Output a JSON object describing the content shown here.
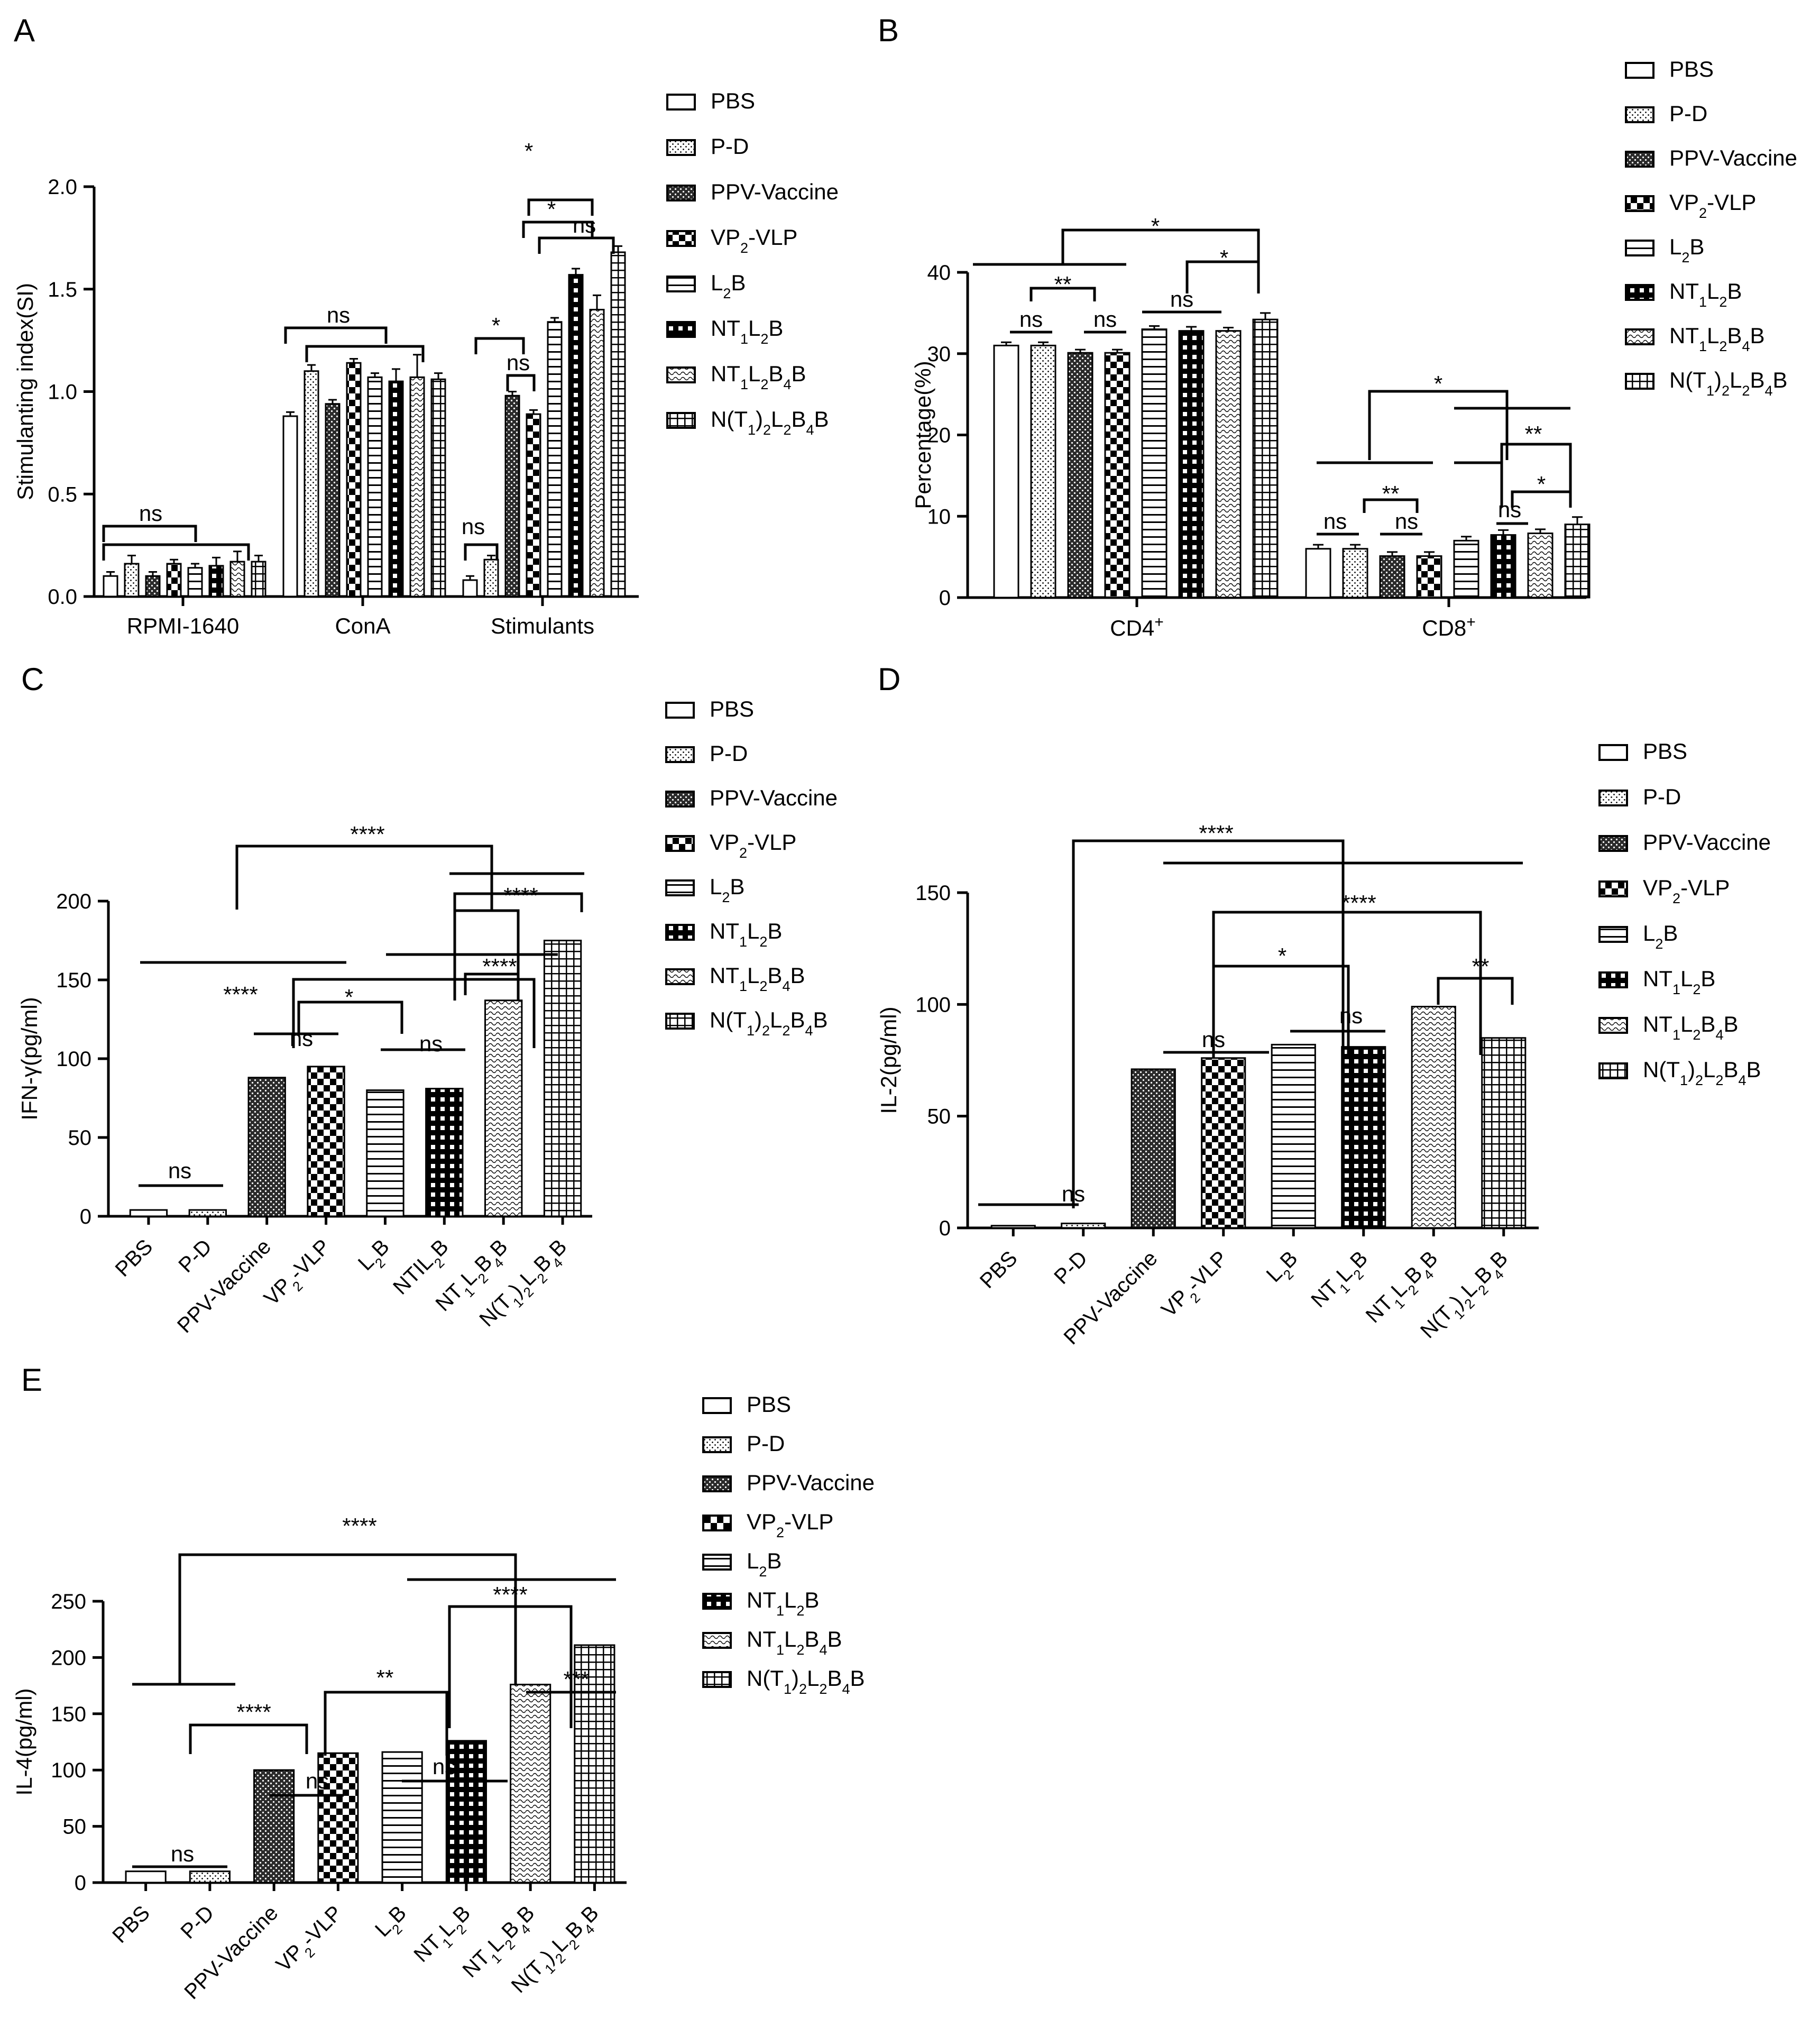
{
  "colors": {
    "ink": "#000000",
    "background": "#ffffff"
  },
  "legend_groups": [
    {
      "label": "PBS",
      "pattern": "plain"
    },
    {
      "label": "P-D",
      "pattern": "dots"
    },
    {
      "label": "PPV-Vaccine",
      "pattern": "dense"
    },
    {
      "label": "VP2-VLP",
      "pattern": "checker"
    },
    {
      "label": "L2B",
      "pattern": "hlines"
    },
    {
      "label": "NT1L2B",
      "pattern": "blackgrid"
    },
    {
      "label": "NT1L2B4B",
      "pattern": "waves"
    },
    {
      "label": "N(T1)2L2B4B",
      "pattern": "grid"
    }
  ],
  "chart_data": [
    {
      "panel": "A",
      "type": "bar",
      "ylabel": "Stimulanting index(SI)",
      "ylim": [
        0,
        2.0
      ],
      "yticks": [
        "0.0",
        "0.5",
        "1.0",
        "1.5",
        "2.0"
      ],
      "categories": [
        "RPMI-1640",
        "ConA",
        "Stimulants"
      ],
      "series": [
        {
          "name": "PBS",
          "values": [
            0.1,
            0.88,
            0.08
          ],
          "errors": [
            0.02,
            0.02,
            0.02
          ]
        },
        {
          "name": "P-D",
          "values": [
            0.16,
            1.1,
            0.18
          ],
          "errors": [
            0.04,
            0.03,
            0.02
          ]
        },
        {
          "name": "PPV-Vaccine",
          "values": [
            0.1,
            0.94,
            0.98
          ],
          "errors": [
            0.02,
            0.02,
            0.02
          ]
        },
        {
          "name": "VP2-VLP",
          "values": [
            0.16,
            1.14,
            0.89
          ],
          "errors": [
            0.02,
            0.02,
            0.02
          ]
        },
        {
          "name": "L2B",
          "values": [
            0.14,
            1.07,
            1.34
          ],
          "errors": [
            0.02,
            0.02,
            0.02
          ]
        },
        {
          "name": "NT1L2B",
          "values": [
            0.15,
            1.05,
            1.57
          ],
          "errors": [
            0.04,
            0.06,
            0.03
          ]
        },
        {
          "name": "NT1L2B4B",
          "values": [
            0.17,
            1.07,
            1.4
          ],
          "errors": [
            0.05,
            0.11,
            0.07
          ]
        },
        {
          "name": "N(T1)2L2B4B",
          "values": [
            0.17,
            1.06,
            1.68
          ],
          "errors": [
            0.03,
            0.03,
            0.03
          ]
        }
      ],
      "annotations": [
        "ns",
        "ns",
        "ns",
        "ns",
        "*",
        "*",
        "*",
        "ns"
      ]
    },
    {
      "panel": "B",
      "type": "bar",
      "ylabel": "Percentage(%)",
      "ylim": [
        0,
        40
      ],
      "yticks": [
        "0",
        "10",
        "20",
        "30",
        "40"
      ],
      "categories": [
        "CD4",
        "CD8"
      ],
      "category_superscript": "+",
      "series": [
        {
          "name": "PBS",
          "values": [
            31.0,
            6.0
          ],
          "errors": [
            0.4,
            0.5
          ]
        },
        {
          "name": "P-D",
          "values": [
            31.0,
            6.0
          ],
          "errors": [
            0.4,
            0.5
          ]
        },
        {
          "name": "PPV-Vaccine",
          "values": [
            30.1,
            5.1
          ],
          "errors": [
            0.4,
            0.5
          ]
        },
        {
          "name": "VP2-VLP",
          "values": [
            30.1,
            5.1
          ],
          "errors": [
            0.4,
            0.5
          ]
        },
        {
          "name": "L2B",
          "values": [
            33.0,
            7.0
          ],
          "errors": [
            0.4,
            0.5
          ]
        },
        {
          "name": "NT1L2B",
          "values": [
            32.8,
            7.7
          ],
          "errors": [
            0.5,
            0.6
          ]
        },
        {
          "name": "NT1L2B4B",
          "values": [
            32.8,
            7.9
          ],
          "errors": [
            0.4,
            0.5
          ]
        },
        {
          "name": "N(T1)2L2B4B",
          "values": [
            34.2,
            9.0
          ],
          "errors": [
            0.8,
            0.9
          ]
        }
      ],
      "annotations": [
        "*",
        "**",
        "ns",
        "ns",
        "ns",
        "*",
        "*",
        "**",
        "ns",
        "ns",
        "**",
        "*",
        "ns"
      ]
    },
    {
      "panel": "C",
      "type": "bar",
      "ylabel": "IFN-γ(pg/ml)",
      "ylim": [
        0,
        200
      ],
      "yticks": [
        "0",
        "50",
        "100",
        "150",
        "200"
      ],
      "categories": [
        "PBS",
        "P-D",
        "PPV-Vaccine",
        "VP2-VLP",
        "L2B",
        "NTIL2B",
        "NT1L2B4B",
        "N(T1)2L2B4B"
      ],
      "values": [
        4,
        4,
        88,
        95,
        80,
        81,
        137,
        175
      ],
      "annotations": [
        "****",
        "****",
        "****",
        "*",
        "****",
        "ns",
        "ns",
        "ns"
      ]
    },
    {
      "panel": "D",
      "type": "bar",
      "ylabel": "IL-2(pg/ml)",
      "ylim": [
        0,
        150
      ],
      "yticks": [
        "0",
        "50",
        "100",
        "150"
      ],
      "categories": [
        "PBS",
        "P-D",
        "PPV-Vaccine",
        "VP2-VLP",
        "L2B",
        "NT1L2B",
        "NT1L2B4B",
        "N(T1)2L2B4B"
      ],
      "values": [
        1,
        2,
        71,
        76,
        82,
        81,
        99,
        85
      ],
      "annotations": [
        "****",
        "****",
        "*",
        "ns",
        "ns",
        "**",
        "ns"
      ]
    },
    {
      "panel": "E",
      "type": "bar",
      "ylabel": "IL-4(pg/ml)",
      "ylim": [
        0,
        250
      ],
      "yticks": [
        "0",
        "50",
        "100",
        "150",
        "200",
        "250"
      ],
      "categories": [
        "PBS",
        "P-D",
        "PPV-Vaccine",
        "VP2-VLP",
        "L2B",
        "NT1L2B",
        "NT1L2B4B",
        "N(T1)2L2B4B"
      ],
      "values": [
        10,
        10,
        100,
        115,
        116,
        126,
        176,
        211
      ],
      "annotations": [
        "****",
        "****",
        "****",
        "**",
        "ns",
        "ns",
        "***",
        "ns"
      ]
    }
  ]
}
